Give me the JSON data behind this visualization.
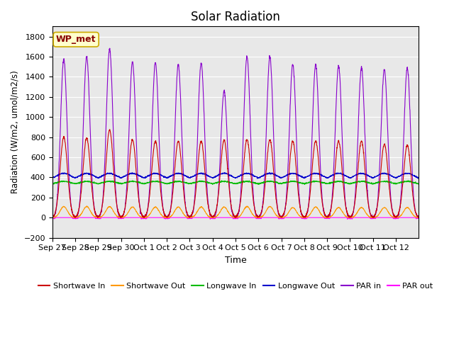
{
  "title": "Solar Radiation",
  "xlabel": "Time",
  "ylabel": "Radiation (W/m2, umol/m2/s)",
  "ylim": [
    -200,
    1900
  ],
  "yticks": [
    -200,
    0,
    200,
    400,
    600,
    800,
    1000,
    1200,
    1400,
    1600,
    1800
  ],
  "xtick_labels": [
    "Sep 27",
    "Sep 28",
    "Sep 29",
    "Sep 30",
    "Oct 1",
    "Oct 2",
    "Oct 3",
    "Oct 4",
    "Oct 5",
    "Oct 6",
    "Oct 7",
    "Oct 8",
    "Oct 9",
    "Oct 10",
    "Oct 11",
    "Oct 12"
  ],
  "watermark": "WP_met",
  "series": {
    "shortwave_in": {
      "color": "#cc0000",
      "label": "Shortwave In"
    },
    "shortwave_out": {
      "color": "#ff9900",
      "label": "Shortwave Out"
    },
    "longwave_in": {
      "color": "#00bb00",
      "label": "Longwave In"
    },
    "longwave_out": {
      "color": "#0000cc",
      "label": "Longwave Out"
    },
    "par_in": {
      "color": "#8800cc",
      "label": "PAR in"
    },
    "par_out": {
      "color": "#ff00ff",
      "label": "PAR out"
    }
  },
  "bg_color": "#e8e8e8",
  "fig_bg": "#ffffff",
  "n_days": 16,
  "pts_per_day": 144,
  "shortwave_in_peaks": [
    800,
    790,
    870,
    775,
    760,
    760,
    760,
    770,
    775,
    775,
    760,
    760,
    760,
    760,
    730,
    720
  ],
  "shortwave_out_peaks": [
    110,
    110,
    110,
    105,
    105,
    105,
    105,
    105,
    110,
    110,
    100,
    105,
    100,
    100,
    100,
    100
  ],
  "longwave_in_base": 330,
  "longwave_in_day_bump": 30,
  "longwave_out_base": 380,
  "longwave_out_day_bump": 60,
  "par_in_peaks": [
    1575,
    1600,
    1680,
    1550,
    1540,
    1520,
    1540,
    1260,
    1600,
    1600,
    1530,
    1520,
    1510,
    1490,
    1480,
    1490
  ]
}
